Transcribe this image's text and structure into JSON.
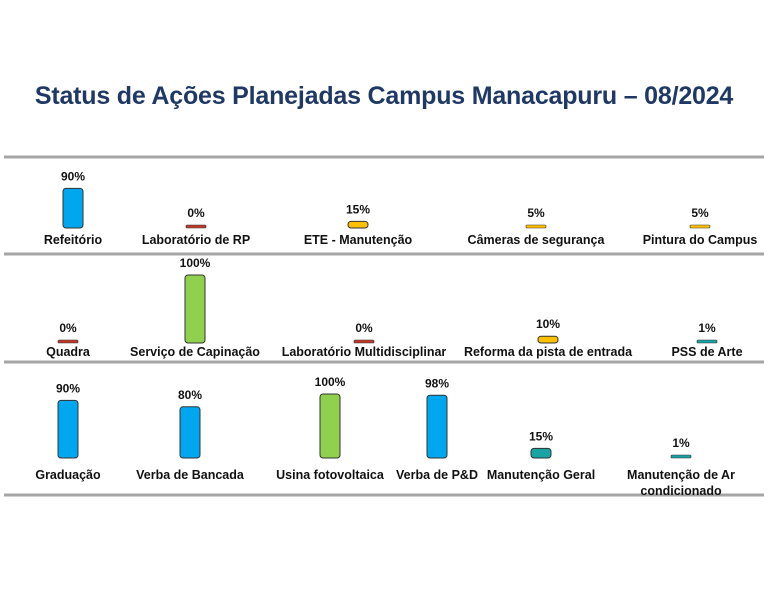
{
  "title": "Status de Ações Planejadas Campus Manacapuru – 08/2024",
  "colors": {
    "blue": "#00a7ee",
    "green": "#8fd14f",
    "yellow": "#ffc000",
    "red": "#c0392b",
    "teal": "#1aa3a3",
    "divider": "#a6a6a6",
    "outline": "#333333"
  },
  "chart_data": {
    "type": "bar",
    "value_unit": "%",
    "rows": [
      {
        "items": [
          {
            "label": [
              "Refeitório"
            ],
            "value": 90,
            "value_label": "90%",
            "color": "blue"
          },
          {
            "label": [
              "Laboratório de RP"
            ],
            "value": 0,
            "value_label": "0%",
            "color": "red"
          },
          {
            "label": [
              "ETE - Manutenção"
            ],
            "value": 15,
            "value_label": "15%",
            "color": "yellow"
          },
          {
            "label": [
              "Câmeras de segurança"
            ],
            "value": 5,
            "value_label": "5%",
            "color": "yellow"
          },
          {
            "label": [
              "Pintura do Campus"
            ],
            "value": 5,
            "value_label": "5%",
            "color": "yellow"
          }
        ]
      },
      {
        "items": [
          {
            "label": [
              "Quadra"
            ],
            "value": 0,
            "value_label": "0%",
            "color": "red"
          },
          {
            "label": [
              "Serviço de Capinação"
            ],
            "value": 100,
            "value_label": "100%",
            "color": "green"
          },
          {
            "label": [
              "Laboratório Multidisciplinar"
            ],
            "value": 0,
            "value_label": "0%",
            "color": "red"
          },
          {
            "label": [
              "Reforma da pista de entrada"
            ],
            "value": 10,
            "value_label": "10%",
            "color": "yellow"
          },
          {
            "label": [
              "PSS de Arte"
            ],
            "value": 1,
            "value_label": "1%",
            "color": "teal"
          }
        ]
      },
      {
        "items": [
          {
            "label": [
              "Graduação"
            ],
            "value": 90,
            "value_label": "90%",
            "color": "blue"
          },
          {
            "label": [
              "Verba de Bancada"
            ],
            "value": 80,
            "value_label": "80%",
            "color": "blue"
          },
          {
            "label": [
              "Usina fotovoltaica"
            ],
            "value": 100,
            "value_label": "100%",
            "color": "green"
          },
          {
            "label": [
              "Verba de P&D"
            ],
            "value": 98,
            "value_label": "98%",
            "color": "blue"
          },
          {
            "label": [
              "Manutenção Geral"
            ],
            "value": 15,
            "value_label": "15%",
            "color": "teal"
          },
          {
            "label": [
              "Manutenção de Ar",
              "condicionado"
            ],
            "value": 1,
            "value_label": "1%",
            "color": "teal"
          }
        ]
      }
    ]
  }
}
